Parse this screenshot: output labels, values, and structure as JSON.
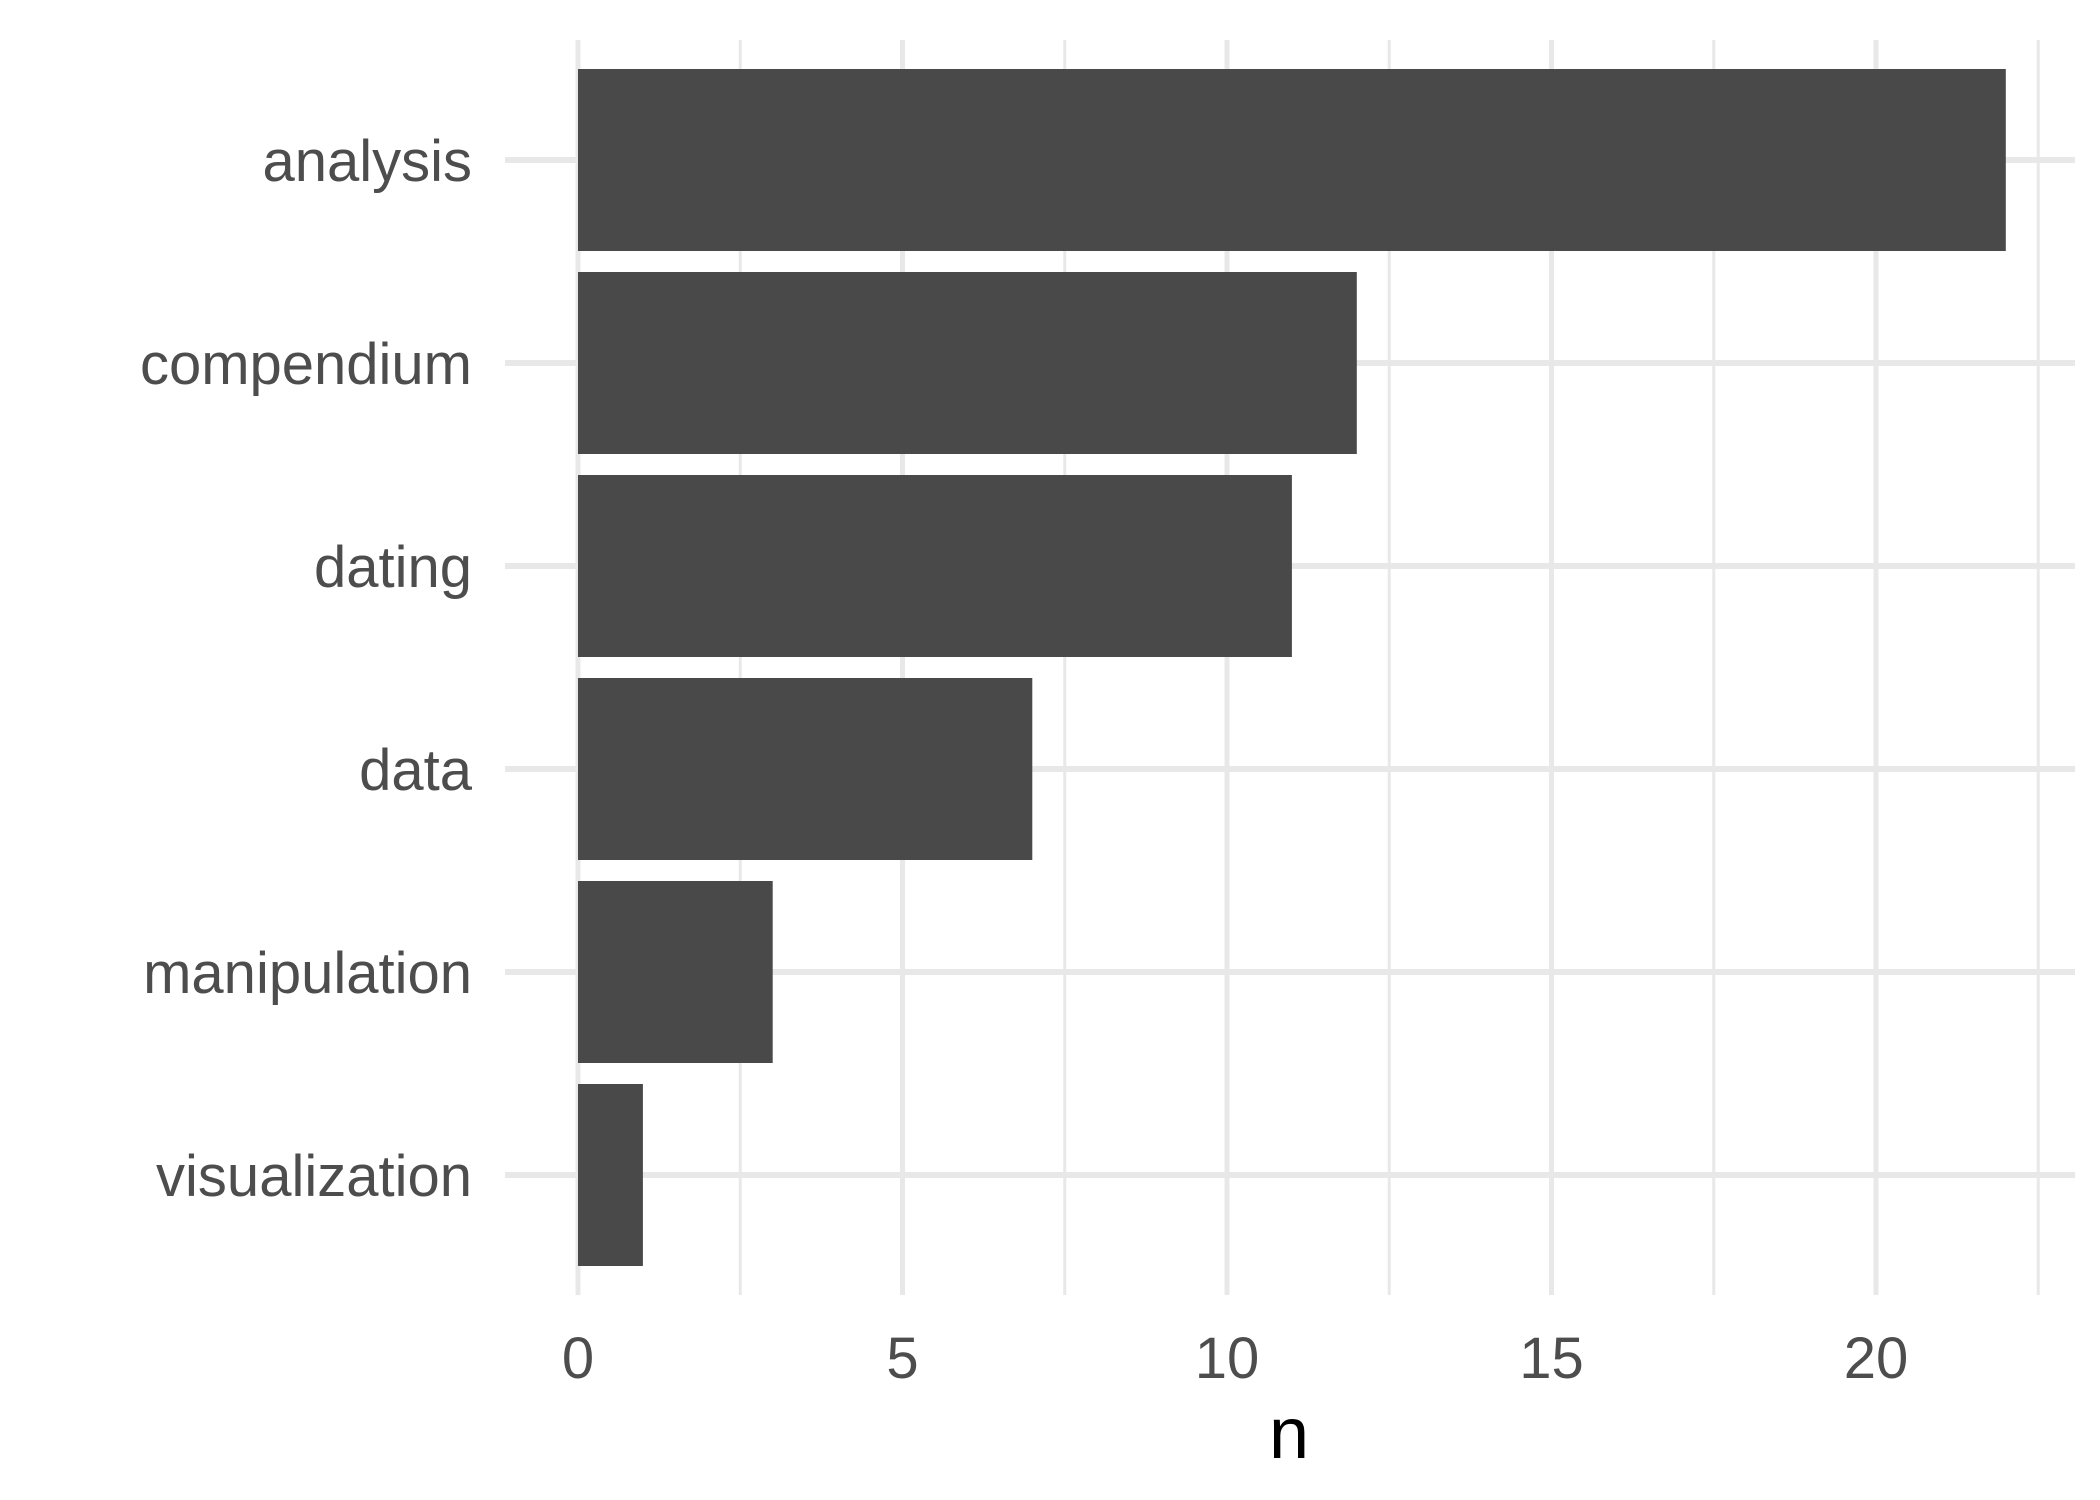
{
  "chart_data": {
    "type": "bar",
    "orientation": "horizontal",
    "categories": [
      "analysis",
      "compendium",
      "dating",
      "data",
      "manipulation",
      "visualization"
    ],
    "values": [
      22,
      12,
      11,
      7,
      3,
      1
    ],
    "title": "",
    "xlabel": "n",
    "ylabel": "",
    "xlim": [
      0,
      22.5
    ],
    "xticks": [
      0,
      5,
      10,
      15,
      20
    ],
    "x_minor_ticks": [
      2.5,
      7.5,
      12.5,
      17.5,
      22.5
    ],
    "grid": true,
    "legend": "none",
    "colors": {
      "bar": "#494949",
      "grid": "#e8e8e8",
      "tick_text": "#4d4d4d",
      "axis_title": "#000000",
      "background": "#ffffff"
    }
  }
}
